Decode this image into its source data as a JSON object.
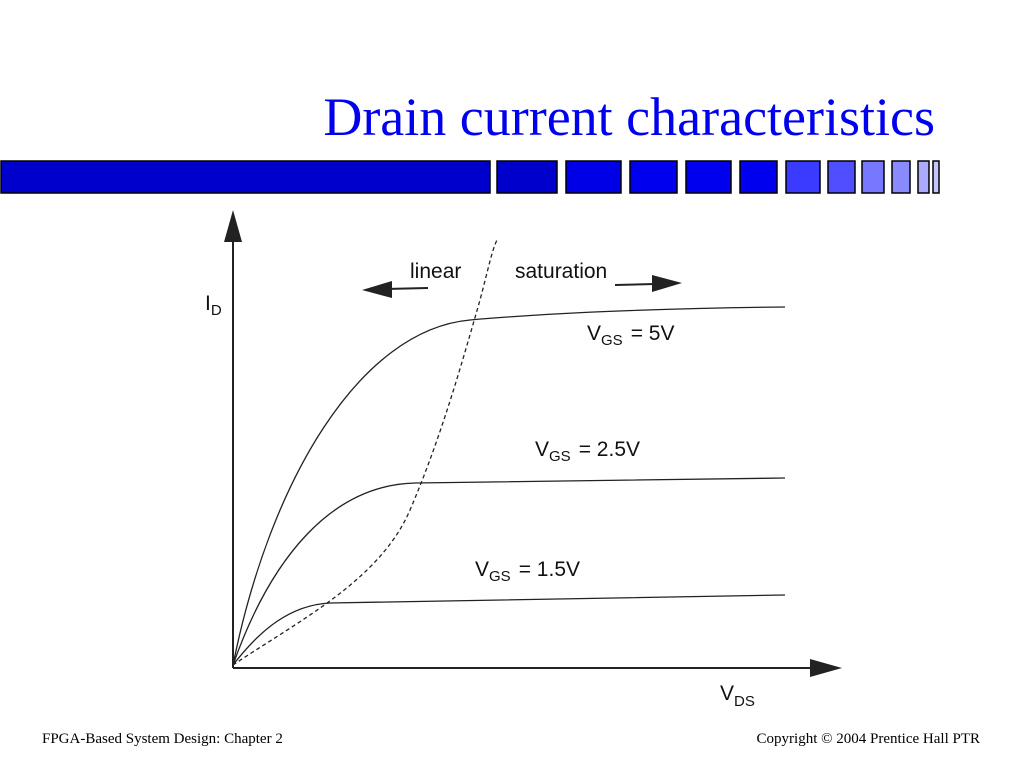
{
  "title": "Drain current characteristics",
  "diagram": {
    "y_axis": {
      "main": "I",
      "sub": "D"
    },
    "x_axis": {
      "main": "V",
      "sub": "DS"
    },
    "regions": {
      "left": "linear",
      "right": "saturation"
    },
    "curves": [
      {
        "main": "V",
        "sub": "GS",
        "value": "= 5V"
      },
      {
        "main": "V",
        "sub": "GS",
        "value": "= 2.5V"
      },
      {
        "main": "V",
        "sub": "GS",
        "value": "= 1.5V"
      }
    ]
  },
  "footer": {
    "left": "FPGA-Based System Design: Chapter 2",
    "right": "Copyright © 2004 Prentice Hall PTR"
  }
}
